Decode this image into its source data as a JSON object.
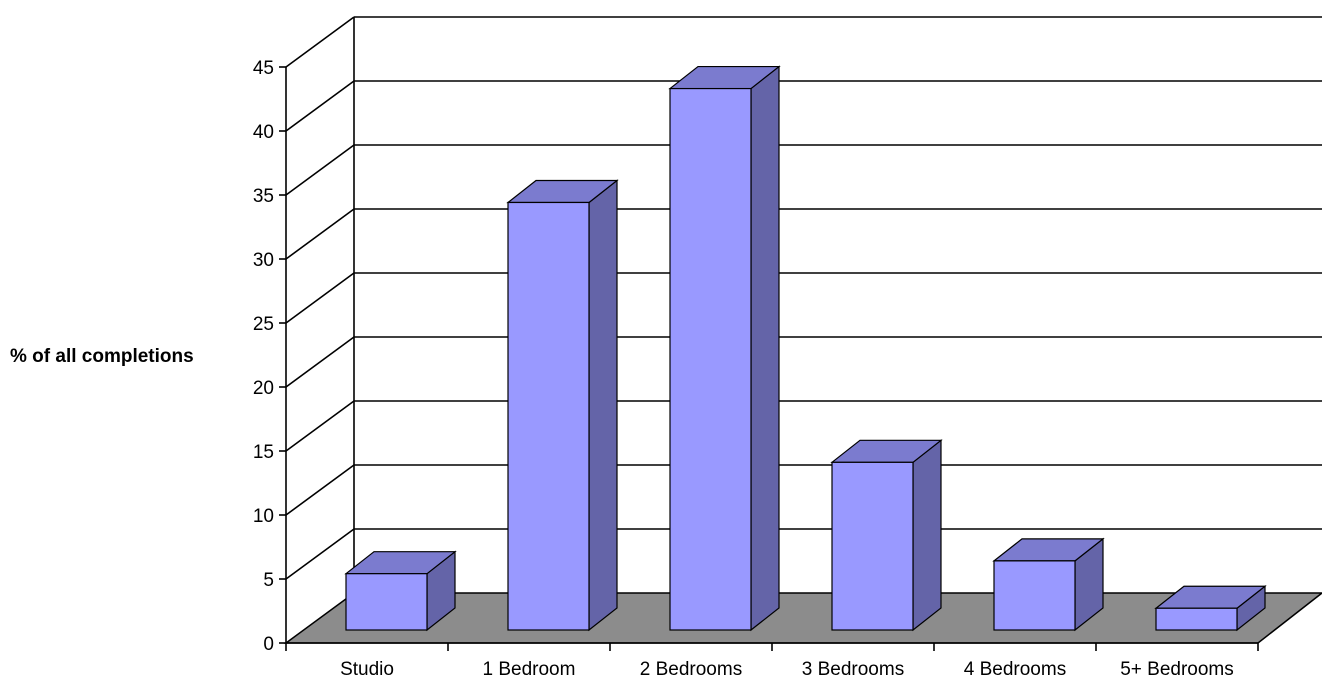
{
  "chart_data": {
    "type": "bar",
    "style": "3d-column",
    "title": "",
    "xlabel": "",
    "ylabel": "% of all completions",
    "categories": [
      "Studio",
      "1 Bedroom",
      "2 Bedrooms",
      "3 Bedrooms",
      "4 Bedrooms",
      "5+ Bedrooms"
    ],
    "values": [
      4.4,
      33.4,
      42.3,
      13.1,
      5.4,
      1.7
    ],
    "ylim": [
      0,
      45
    ],
    "yticks": [
      0,
      5,
      10,
      15,
      20,
      25,
      30,
      35,
      40,
      45
    ],
    "grid": true,
    "legend": "none",
    "colors": {
      "bar_front": "#9999ff",
      "bar_top": "#7b7bcf",
      "bar_side": "#6464a8",
      "floor": "#8c8c8c",
      "gridline": "#000000"
    }
  }
}
